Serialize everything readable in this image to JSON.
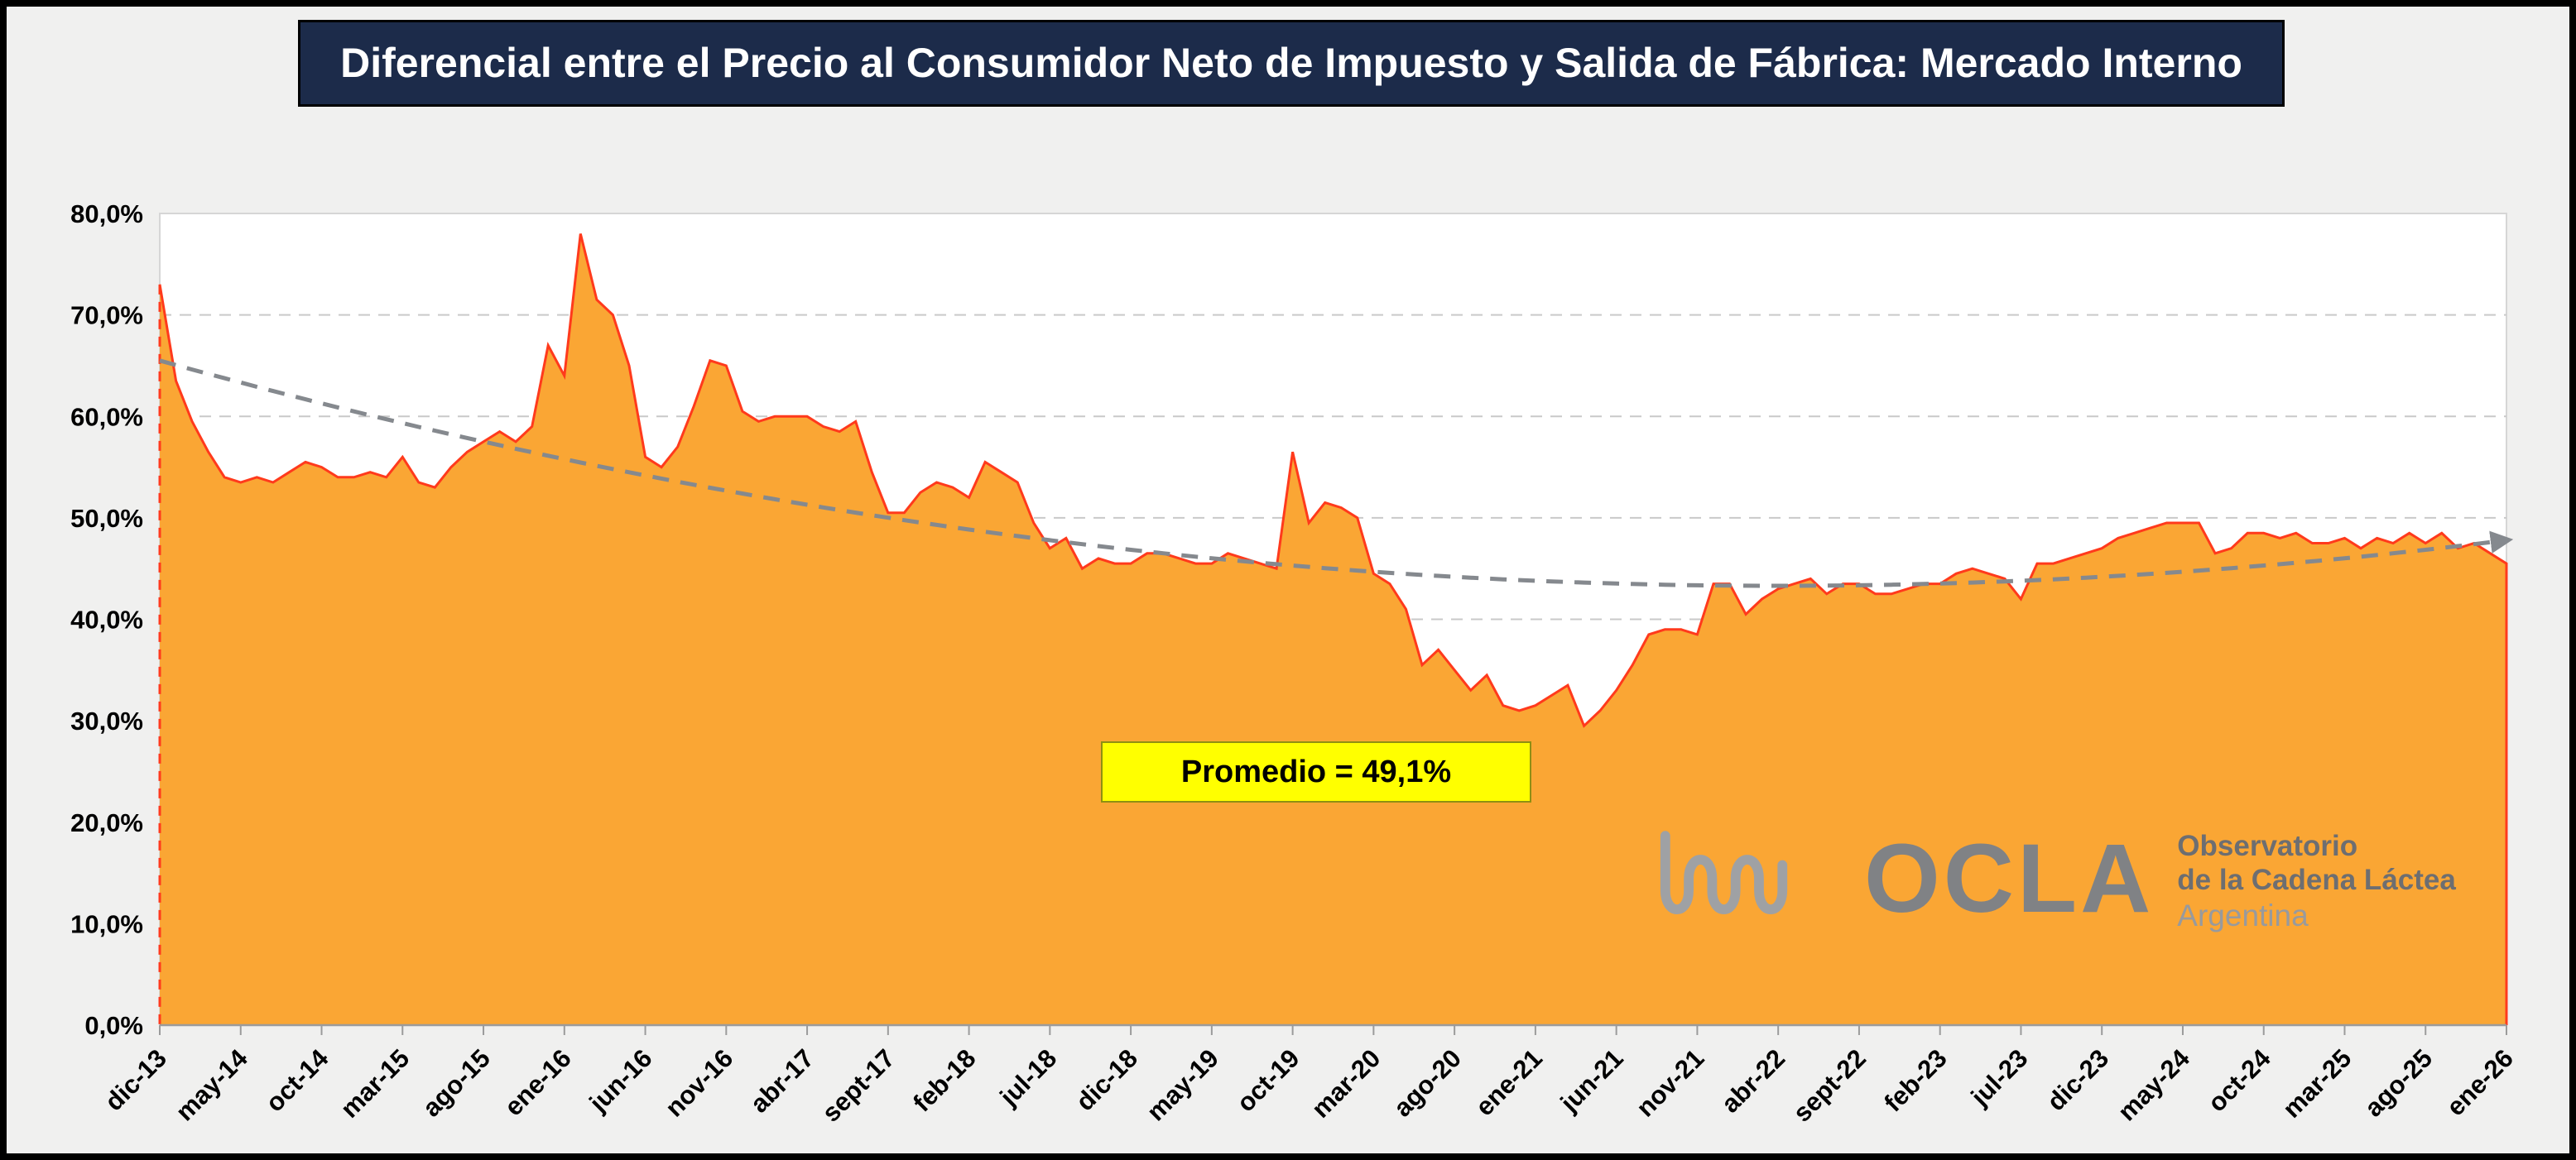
{
  "title": "Diferencial entre el Precio al Consumidor Neto de Impuesto y Salida de Fábrica: Mercado Interno",
  "annotation": "Promedio = 49,1%",
  "logo": {
    "name": "OCLA",
    "line1": "Observatorio",
    "line2": "de la Cadena Láctea",
    "line3": "Argentina"
  },
  "colors": {
    "title_bg": "#1c2b4a",
    "annotation_bg": "#ffff00",
    "background": "#f0f0ef"
  },
  "chart_data": {
    "type": "area",
    "title": "Diferencial entre el Precio al Consumidor Neto de Impuesto y Salida de Fábrica: Mercado Interno",
    "unit": "%",
    "ylim": [
      0,
      80
    ],
    "grid": "horizontal-dashed",
    "legend_position": "none",
    "average": 49.1,
    "y_ticks": [
      0,
      10,
      20,
      30,
      40,
      50,
      60,
      70,
      80
    ],
    "y_tick_labels": [
      "0,0%",
      "10,0%",
      "20,0%",
      "30,0%",
      "40,0%",
      "50,0%",
      "60,0%",
      "70,0%",
      "80,0%"
    ],
    "x_tick_every": 5,
    "x_tick_labels": [
      "dic-13",
      "may-14",
      "oct-14",
      "mar-15",
      "ago-15",
      "ene-16",
      "jun-16",
      "nov-16",
      "abr-17",
      "sept-17",
      "feb-18",
      "jul-18",
      "dic-18",
      "may-19",
      "oct-19",
      "mar-20",
      "ago-20",
      "ene-21",
      "jun-21",
      "nov-21",
      "abr-22",
      "sept-22",
      "feb-23",
      "jul-23",
      "dic-23",
      "may-24",
      "oct-24",
      "mar-25",
      "ago-25",
      "ene-26"
    ],
    "values": [
      73,
      63.5,
      59.5,
      56.5,
      54,
      53.5,
      54,
      53.5,
      54.5,
      55.5,
      55,
      54,
      54,
      54.5,
      54,
      56,
      53.5,
      53,
      55,
      56.5,
      57.5,
      58.5,
      57.5,
      59,
      67,
      64,
      78,
      71.5,
      70,
      65,
      56,
      55,
      57,
      61,
      65.5,
      65,
      60.5,
      59.5,
      60,
      60,
      60,
      59,
      58.5,
      59.5,
      54.5,
      50.5,
      50.5,
      52.5,
      53.5,
      53,
      52,
      55.5,
      54.5,
      53.5,
      49.5,
      47,
      48,
      45,
      46,
      45.5,
      45.5,
      46.5,
      46.5,
      46,
      45.5,
      45.5,
      46.5,
      46,
      45.5,
      45,
      56.5,
      49.5,
      51.5,
      51,
      50,
      44.5,
      43.5,
      41,
      35.5,
      37,
      35,
      33,
      34.5,
      31.5,
      31,
      31.5,
      32.5,
      33.5,
      29.5,
      31,
      33,
      35.5,
      38.5,
      39,
      39,
      38.5,
      43.5,
      43.5,
      40.5,
      42,
      43,
      43.5,
      44,
      42.5,
      43.5,
      43.5,
      42.5,
      42.5,
      43,
      43.5,
      43.5,
      44.5,
      45,
      44.5,
      44,
      42,
      45.5,
      45.5,
      46,
      46.5,
      47,
      48,
      48.5,
      49,
      49.5,
      49.5,
      49.5,
      46.5,
      47,
      48.5,
      48.5,
      48,
      48.5,
      47.5,
      47.5,
      48,
      47,
      48,
      47.5,
      48.5,
      47.5,
      48.5,
      47,
      47.5,
      46.5,
      45.5
    ],
    "trend": {
      "type": "polynomial2",
      "vertex_index": 100,
      "vertex_value": 43.3,
      "a": 0.00222,
      "start_value": 65.5,
      "end_value": 47.8
    },
    "series_color": "#FAA634",
    "series_border_color": "#FF3A1C",
    "trend_color": "#85898E",
    "gridline_color": "#C9C9C9",
    "axis_color": "#9B9B9B"
  }
}
